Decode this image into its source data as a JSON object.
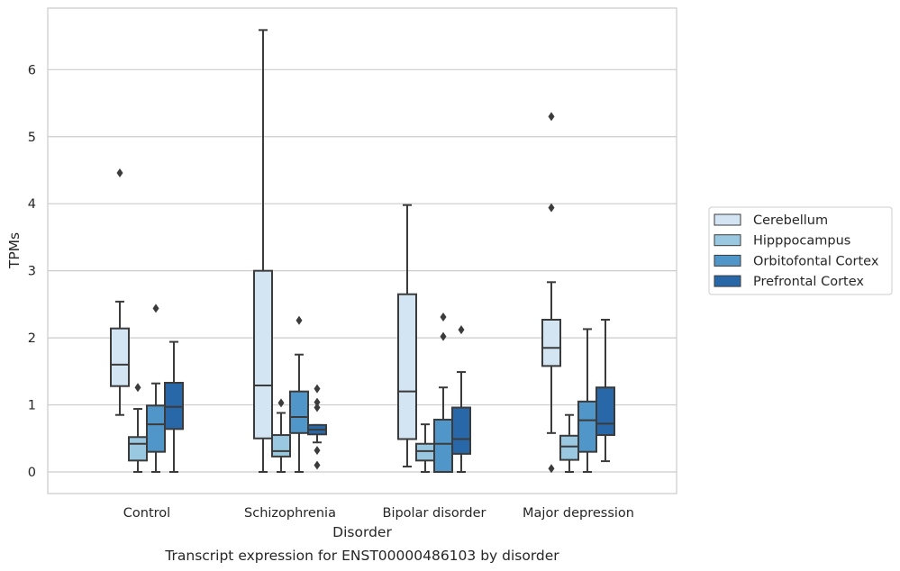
{
  "chart_data": {
    "type": "box",
    "title": "",
    "caption": "Transcript expression for ENST00000486103 by disorder",
    "xlabel": "Disorder",
    "ylabel": "TPMs",
    "ylim": [
      -0.32,
      6.92
    ],
    "yticks": [
      0,
      1,
      2,
      3,
      4,
      5,
      6
    ],
    "grid": "horizontal",
    "legend_position": "right",
    "categories": [
      "Control",
      "Schizophrenia",
      "Bipolar disorder",
      "Major depression"
    ],
    "series": [
      {
        "name": "Cerebellum",
        "color": "#d3e4f3",
        "boxes": [
          {
            "q1": 1.28,
            "median": 1.6,
            "q3": 2.14,
            "whislo": 0.85,
            "whishi": 2.54,
            "fliers": [
              4.46
            ]
          },
          {
            "q1": 0.5,
            "median": 1.29,
            "q3": 3.0,
            "whislo": 0.0,
            "whishi": 6.59,
            "fliers": []
          },
          {
            "q1": 0.49,
            "median": 1.2,
            "q3": 2.65,
            "whislo": 0.08,
            "whishi": 3.98,
            "fliers": []
          },
          {
            "q1": 1.58,
            "median": 1.85,
            "q3": 2.27,
            "whislo": 0.58,
            "whishi": 2.83,
            "fliers": [
              5.3,
              3.94,
              0.05
            ]
          }
        ]
      },
      {
        "name": "Hipppocampus",
        "color": "#9ac8e0",
        "boxes": [
          {
            "q1": 0.17,
            "median": 0.42,
            "q3": 0.52,
            "whislo": 0.0,
            "whishi": 0.94,
            "fliers": [
              1.26
            ]
          },
          {
            "q1": 0.23,
            "median": 0.31,
            "q3": 0.55,
            "whislo": 0.0,
            "whishi": 0.88,
            "fliers": [
              1.03
            ]
          },
          {
            "q1": 0.17,
            "median": 0.31,
            "q3": 0.42,
            "whislo": 0.0,
            "whishi": 0.71,
            "fliers": []
          },
          {
            "q1": 0.18,
            "median": 0.38,
            "q3": 0.54,
            "whislo": 0.0,
            "whishi": 0.85,
            "fliers": []
          }
        ]
      },
      {
        "name": "Orbitofontal Cortex",
        "color": "#5096c8",
        "boxes": [
          {
            "q1": 0.3,
            "median": 0.71,
            "q3": 0.99,
            "whislo": 0.0,
            "whishi": 1.32,
            "fliers": [
              2.44
            ]
          },
          {
            "q1": 0.58,
            "median": 0.82,
            "q3": 1.2,
            "whislo": 0.0,
            "whishi": 1.75,
            "fliers": [
              2.26
            ]
          },
          {
            "q1": 0.0,
            "median": 0.42,
            "q3": 0.78,
            "whislo": 0.0,
            "whishi": 1.26,
            "fliers": [
              2.31,
              2.02
            ]
          },
          {
            "q1": 0.3,
            "median": 0.77,
            "q3": 1.05,
            "whislo": 0.0,
            "whishi": 2.13,
            "fliers": []
          }
        ]
      },
      {
        "name": "Prefrontal Cortex",
        "color": "#2868a8",
        "boxes": [
          {
            "q1": 0.64,
            "median": 0.97,
            "q3": 1.33,
            "whislo": 0.0,
            "whishi": 1.94,
            "fliers": []
          },
          {
            "q1": 0.56,
            "median": 0.63,
            "q3": 0.7,
            "whislo": 0.44,
            "whishi": 0.7,
            "fliers": [
              1.24,
              1.04,
              0.96,
              0.32,
              0.1
            ]
          },
          {
            "q1": 0.27,
            "median": 0.49,
            "q3": 0.96,
            "whislo": 0.0,
            "whishi": 1.49,
            "fliers": [
              2.12
            ]
          },
          {
            "q1": 0.55,
            "median": 0.72,
            "q3": 1.26,
            "whislo": 0.16,
            "whishi": 2.27,
            "fliers": []
          }
        ]
      }
    ]
  }
}
